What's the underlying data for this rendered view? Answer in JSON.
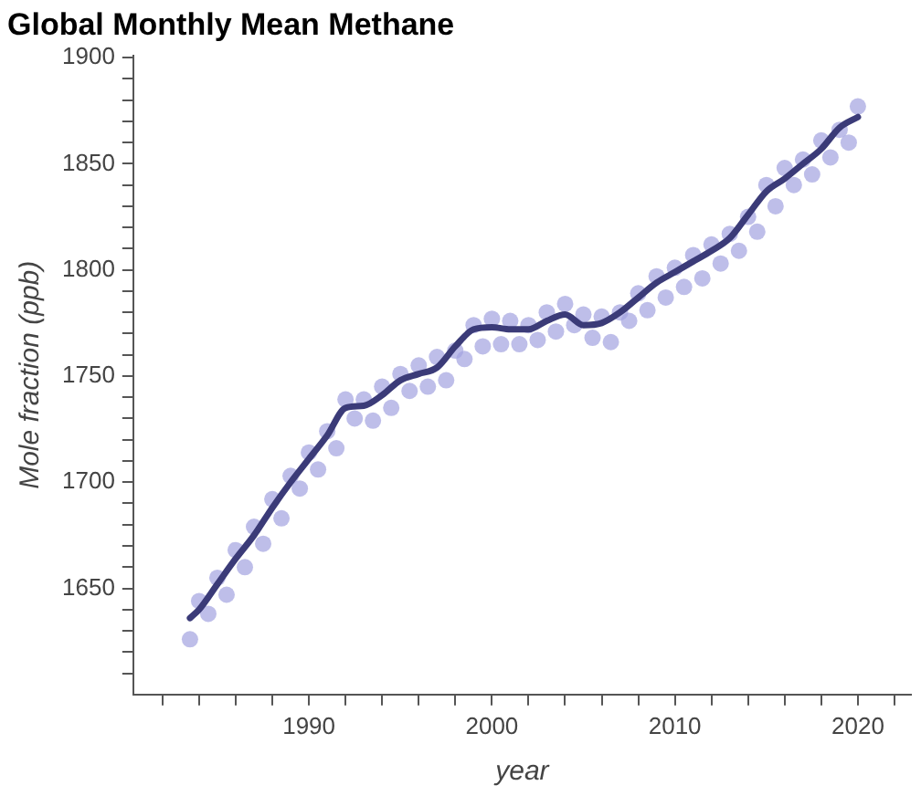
{
  "chart_data": {
    "type": "line",
    "title": "Global Monthly Mean Methane",
    "xlabel": "year",
    "ylabel": "Mole fraction (ppb)",
    "xlim": [
      1980.4,
      2022.9
    ],
    "ylim": [
      1600,
      1901
    ],
    "xticks": [
      {
        "value": 1982,
        "label": null
      },
      {
        "value": 1984,
        "label": null
      },
      {
        "value": 1986,
        "label": null
      },
      {
        "value": 1988,
        "label": null
      },
      1990,
      {
        "value": 1992,
        "label": null
      },
      {
        "value": 1994,
        "label": null
      },
      {
        "value": 1996,
        "label": null
      },
      {
        "value": 1998,
        "label": null
      },
      2000,
      {
        "value": 2002,
        "label": null
      },
      {
        "value": 2004,
        "label": null
      },
      {
        "value": 2006,
        "label": null
      },
      {
        "value": 2008,
        "label": null
      },
      2010,
      {
        "value": 2012,
        "label": null
      },
      {
        "value": 2014,
        "label": null
      },
      {
        "value": 2016,
        "label": null
      },
      {
        "value": 2018,
        "label": null
      },
      2020,
      {
        "value": 2022,
        "label": null
      }
    ],
    "yticks": [
      {
        "value": 1610,
        "label": null
      },
      {
        "value": 1620,
        "label": null
      },
      {
        "value": 1630,
        "label": null
      },
      {
        "value": 1640,
        "label": null
      },
      1650,
      {
        "value": 1660,
        "label": null
      },
      {
        "value": 1670,
        "label": null
      },
      {
        "value": 1680,
        "label": null
      },
      {
        "value": 1690,
        "label": null
      },
      1700,
      {
        "value": 1710,
        "label": null
      },
      {
        "value": 1720,
        "label": null
      },
      {
        "value": 1730,
        "label": null
      },
      {
        "value": 1740,
        "label": null
      },
      1750,
      {
        "value": 1760,
        "label": null
      },
      {
        "value": 1770,
        "label": null
      },
      {
        "value": 1780,
        "label": null
      },
      {
        "value": 1790,
        "label": null
      },
      1800,
      {
        "value": 1810,
        "label": null
      },
      {
        "value": 1820,
        "label": null
      },
      {
        "value": 1830,
        "label": null
      },
      {
        "value": 1840,
        "label": null
      },
      1850,
      {
        "value": 1860,
        "label": null
      },
      {
        "value": 1870,
        "label": null
      },
      {
        "value": 1880,
        "label": null
      },
      {
        "value": 1890,
        "label": null
      },
      1900
    ],
    "grid": false,
    "legend": false,
    "series": [
      {
        "type": "scatter",
        "color": "#a3a3e0",
        "marker": "circle",
        "x": [
          1983.5,
          1984,
          1984.5,
          1985,
          1985.5,
          1986,
          1986.5,
          1987,
          1987.5,
          1988,
          1988.5,
          1989,
          1989.5,
          1990,
          1990.5,
          1991,
          1991.5,
          1992,
          1992.5,
          1993,
          1993.5,
          1994,
          1994.5,
          1995,
          1995.5,
          1996,
          1996.5,
          1997,
          1997.5,
          1998,
          1998.5,
          1999,
          1999.5,
          2000,
          2000.5,
          2001,
          2001.5,
          2002,
          2002.5,
          2003,
          2003.5,
          2004,
          2004.5,
          2005,
          2005.5,
          2006,
          2006.5,
          2007,
          2007.5,
          2008,
          2008.5,
          2009,
          2009.5,
          2010,
          2010.5,
          2011,
          2011.5,
          2012,
          2012.5,
          2013,
          2013.5,
          2014,
          2014.5,
          2015,
          2015.5,
          2016,
          2016.5,
          2017,
          2017.5,
          2018,
          2018.5,
          2019,
          2019.5,
          2020
        ],
        "values": [
          1626,
          1644,
          1638,
          1655,
          1647,
          1668,
          1660,
          1679,
          1671,
          1692,
          1683,
          1703,
          1697,
          1714,
          1706,
          1724,
          1716,
          1739,
          1730,
          1739,
          1729,
          1745,
          1735,
          1751,
          1743,
          1755,
          1745,
          1759,
          1748,
          1762,
          1758,
          1774,
          1764,
          1777,
          1765,
          1776,
          1765,
          1774,
          1767,
          1780,
          1771,
          1784,
          1774,
          1779,
          1768,
          1778,
          1766,
          1780,
          1776,
          1789,
          1781,
          1797,
          1787,
          1801,
          1792,
          1807,
          1796,
          1812,
          1803,
          1817,
          1809,
          1825,
          1818,
          1840,
          1830,
          1848,
          1840,
          1852,
          1845,
          1861,
          1853,
          1866,
          1860,
          1877
        ]
      },
      {
        "type": "line",
        "color": "#3b3b78",
        "marker": "none",
        "line_style": "solid",
        "x": [
          1983.5,
          1984,
          1985,
          1986,
          1987,
          1988,
          1989,
          1990,
          1991,
          1992,
          1993,
          1994,
          1995,
          1996,
          1997,
          1998,
          1999,
          2000,
          2001,
          2002,
          2003,
          2004,
          2005,
          2006,
          2007,
          2008,
          2009,
          2010,
          2011,
          2012,
          2013,
          2014,
          2015,
          2016,
          2017,
          2018,
          2019,
          2020
        ],
        "values": [
          1636,
          1640,
          1652,
          1664,
          1675,
          1688,
          1700,
          1711,
          1722,
          1735,
          1736,
          1741,
          1748,
          1751,
          1754,
          1764,
          1772,
          1773,
          1772,
          1772,
          1776,
          1779,
          1774,
          1775,
          1780,
          1787,
          1794,
          1799,
          1804,
          1809,
          1815,
          1826,
          1837,
          1843,
          1850,
          1857,
          1867,
          1872
        ]
      }
    ]
  }
}
